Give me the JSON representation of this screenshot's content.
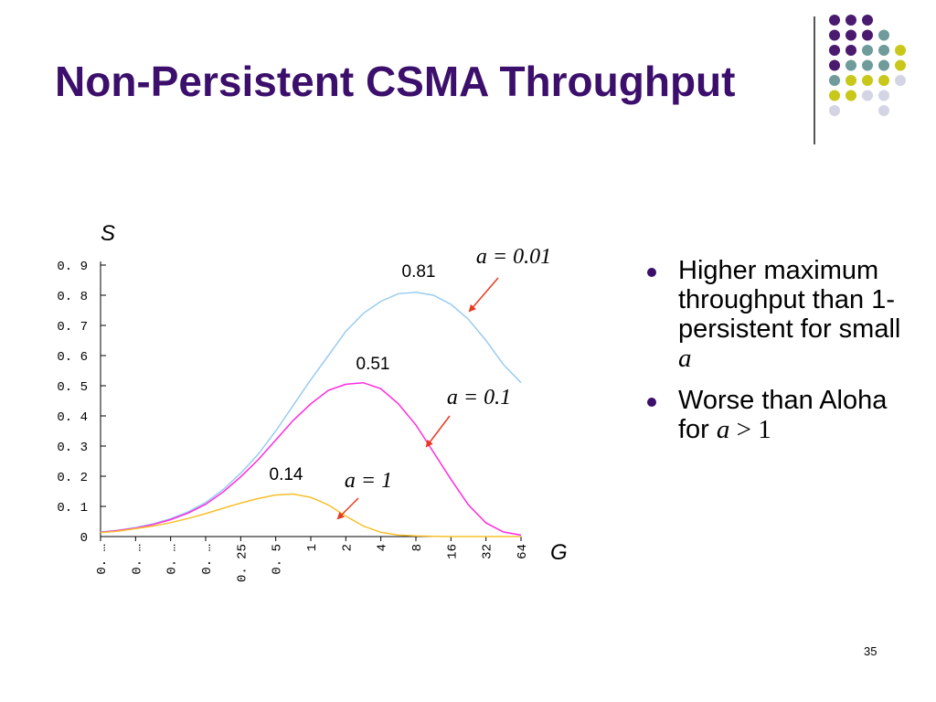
{
  "slide": {
    "title": "Non-Persistent CSMA Throughput",
    "page_number": "35",
    "accent_color": "#3b0f6b"
  },
  "bullets": [
    {
      "text": "Higher maximum throughput than 1-persistent for small ",
      "var": "a",
      "suffix": ""
    },
    {
      "text": "Worse than Aloha for ",
      "var": "a",
      "suffix": " > 1"
    }
  ],
  "decor": {
    "dot_colors": {
      "P": "#4a1a6e",
      "T": "#6f9b9b",
      "Y": "#c8c81a",
      "L": "#d4d4e4"
    },
    "dot_grid": [
      "PPP",
      "PPPT",
      "PPTTY",
      "PTTTY",
      "TYYYL",
      "YYLL",
      "L  L"
    ]
  },
  "chart_data": {
    "type": "line",
    "xlabel": "G",
    "ylabel": "S",
    "x_scale": "log2",
    "x_tick_labels": [
      "0.…",
      "0.…",
      "0.…",
      "0.…",
      "0.25",
      "0.5",
      "1",
      "2",
      "4",
      "8",
      "16",
      "32",
      "64"
    ],
    "y_tick_labels": [
      "0",
      "0.1",
      "0.2",
      "0.3",
      "0.4",
      "0.5",
      "0.6",
      "0.7",
      "0.8",
      "0.9"
    ],
    "ylim": [
      0,
      0.9
    ],
    "x": [
      0.015625,
      0.02209709,
      0.03125,
      0.04419417,
      0.0625,
      0.08838835,
      0.125,
      0.1767767,
      0.25,
      0.35355339,
      0.5,
      0.70710678,
      1,
      1.41421356,
      2,
      2.82842712,
      4,
      5.65685425,
      8,
      11.3137085,
      16,
      22.627417,
      32,
      45.254834,
      64
    ],
    "series": [
      {
        "label": "a = 0.01",
        "color": "#99ccf0",
        "values": [
          0.015,
          0.021,
          0.03,
          0.042,
          0.059,
          0.082,
          0.113,
          0.156,
          0.21,
          0.273,
          0.35,
          0.435,
          0.52,
          0.6,
          0.68,
          0.74,
          0.78,
          0.805,
          0.81,
          0.8,
          0.77,
          0.72,
          0.65,
          0.57,
          0.51
        ]
      },
      {
        "label": "a = 0.1",
        "color": "#ff2adf",
        "values": [
          0.014,
          0.02,
          0.028,
          0.04,
          0.056,
          0.078,
          0.107,
          0.148,
          0.198,
          0.255,
          0.32,
          0.385,
          0.44,
          0.485,
          0.505,
          0.51,
          0.49,
          0.44,
          0.37,
          0.28,
          0.19,
          0.105,
          0.045,
          0.015,
          0.005
        ]
      },
      {
        "label": "a = 1",
        "color": "#f5c02a",
        "values": [
          0.013,
          0.018,
          0.026,
          0.035,
          0.046,
          0.06,
          0.076,
          0.094,
          0.111,
          0.126,
          0.138,
          0.141,
          0.13,
          0.105,
          0.068,
          0.035,
          0.014,
          0.005,
          0.002,
          0.001,
          0,
          0,
          0,
          0,
          0
        ]
      }
    ],
    "annotations": [
      {
        "label": "0.81",
        "type": "value"
      },
      {
        "label": "0.51",
        "type": "value"
      },
      {
        "label": "0.14",
        "type": "value"
      },
      {
        "label": "a = 0.01",
        "type": "series"
      },
      {
        "label": "a = 0.1",
        "type": "series"
      },
      {
        "label": "a = 1",
        "type": "series"
      }
    ],
    "arrow_color": "#e83a1f"
  }
}
